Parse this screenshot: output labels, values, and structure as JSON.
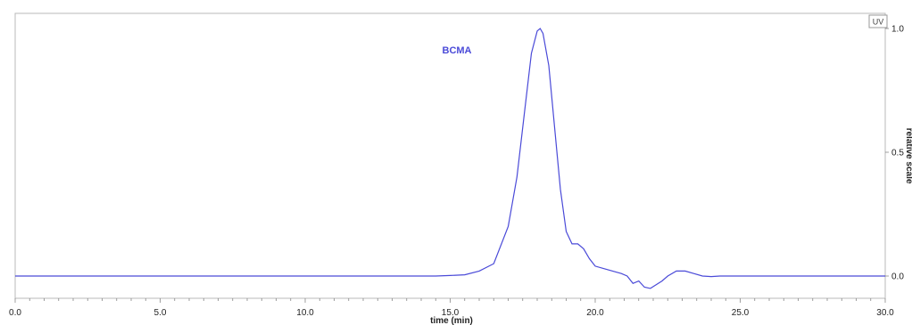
{
  "chart_data": {
    "type": "line",
    "xlabel": "time (min)",
    "ylabel": "relative scale",
    "xlim": [
      0,
      30
    ],
    "ylim": [
      -0.05,
      1.05
    ],
    "x_ticks": [
      "0.0",
      "5.0",
      "10.0",
      "15.0",
      "20.0",
      "25.0",
      "30.0"
    ],
    "y_ticks": [
      "0.0",
      "0.5",
      "1.0"
    ],
    "legend": "UV",
    "legend_position": "top-right",
    "annotation": "BCMA",
    "grid": false,
    "series": [
      {
        "name": "UV",
        "color": "#4a4ad8",
        "x": [
          0,
          5,
          10,
          14.5,
          15.0,
          15.5,
          16.0,
          16.5,
          17.0,
          17.3,
          17.6,
          17.8,
          18.0,
          18.1,
          18.2,
          18.4,
          18.6,
          18.8,
          19.0,
          19.2,
          19.4,
          19.6,
          19.8,
          20.0,
          20.3,
          20.6,
          20.9,
          21.1,
          21.3,
          21.5,
          21.7,
          21.9,
          22.1,
          22.3,
          22.5,
          22.8,
          23.1,
          23.4,
          23.7,
          24.0,
          24.3,
          25,
          30
        ],
        "y": [
          0.0,
          0.0,
          0.0,
          0.0,
          0.002,
          0.005,
          0.02,
          0.05,
          0.2,
          0.4,
          0.7,
          0.9,
          0.99,
          1.0,
          0.98,
          0.85,
          0.6,
          0.35,
          0.18,
          0.13,
          0.13,
          0.11,
          0.07,
          0.04,
          0.03,
          0.02,
          0.01,
          0.0,
          -0.03,
          -0.02,
          -0.045,
          -0.05,
          -0.035,
          -0.02,
          0.0,
          0.02,
          0.02,
          0.01,
          0.0,
          -0.002,
          0.0,
          0.0,
          0.0
        ]
      }
    ]
  }
}
